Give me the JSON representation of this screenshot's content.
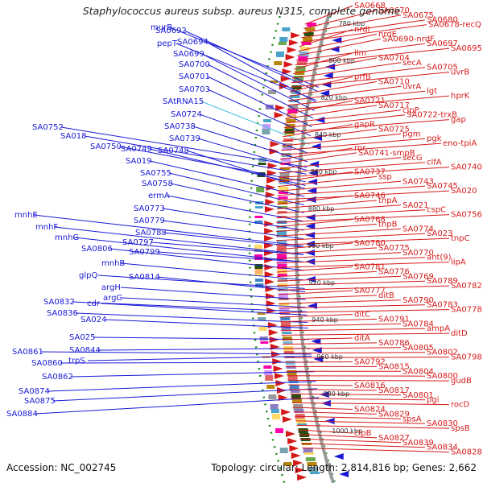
{
  "title": "Staphylococcus aureus subsp. aureus N315, complete genome",
  "accession": "Accession: NC_002745",
  "topology": "Topology: circular; Length: 2,814,816 bp; Genes: 2,662",
  "colors": {
    "forward": "#d61a1a",
    "reverse": "#1a1ad6",
    "rna": "#3cc0e0",
    "backbone": "#9a9a9a",
    "dotted": "#1a8a1a"
  },
  "ticks": [
    "780 kbp",
    "800 kbp",
    "820 kbp",
    "840 kbp",
    "860 kbp",
    "880 kbp",
    "900 kbp",
    "920 kbp",
    "940 kbp",
    "960 kbp",
    "980 kbp",
    "1000 kbp"
  ],
  "left_labels": [
    "murB",
    "SA0692",
    "pepT",
    "SA0694",
    "SA0699",
    "SA0700",
    "SA0701",
    "SA0703",
    "SAtRNA15",
    "SA0724",
    "SA0738",
    "SA0739",
    "SA0752",
    "SA018",
    "SA0750",
    "SA0749",
    "SA0748",
    "SA019",
    "SA0755",
    "SA0758",
    "ermA",
    "SA0773",
    "SA0779",
    "SA0788",
    "SA0797",
    "SA0799",
    "mnhE",
    "mnhF",
    "mnhG",
    "SA0806",
    "mnhB",
    "glpQ",
    "SA0814",
    "argH",
    "argG",
    "SA0832",
    "cdr",
    "SA0836",
    "SA024",
    "SA025",
    "SA0844",
    "trpS",
    "SA0861",
    "SA0860",
    "SA0862",
    "SA0874",
    "SA0875",
    "SA0884"
  ],
  "right_labels": [
    "SA0668",
    "SA0670",
    "SA0675",
    "SA0680",
    "SA0678-recQ",
    "nrdI",
    "nrdE",
    "SA0690-nrdF",
    "SA0697",
    "SA0695",
    "llm",
    "SA0704",
    "secA",
    "SA0705",
    "uvrB",
    "prfB",
    "SA0710",
    "uvrA",
    "lgt",
    "hprK",
    "SA0721",
    "SA0717",
    "clpP",
    "SA0722-trxB",
    "gap",
    "gapR",
    "SA0725",
    "pgm",
    "pgk",
    "eno-tpiA",
    "rnr",
    "SA0741-smpB",
    "secG",
    "clfA",
    "SA0740",
    "SA0737",
    "ssp",
    "SA0743",
    "SA0745",
    "SA020",
    "SA0746",
    "tnpA",
    "SA021",
    "cspC",
    "SA0756",
    "SA0768",
    "tnpB",
    "SA0774",
    "SA023",
    "tnpC",
    "SA0780",
    "SA0775",
    "SA0770",
    "ant(9)",
    "lipA",
    "SA0781",
    "SA0776",
    "SA0769",
    "SA0789",
    "SA0782",
    "SA0777",
    "ditB",
    "SA0790",
    "SA0783",
    "SA0778",
    "ditC",
    "SA0791",
    "SA0784",
    "ampA",
    "ditD",
    "ditA",
    "SA0786",
    "SA0805",
    "SA0802",
    "SA0798",
    "SA0792",
    "SA0815",
    "SA0804",
    "SA0800",
    "gudB",
    "SA0816",
    "SA0817",
    "SA0801",
    "pgi",
    "rocD",
    "SA0824",
    "SA0829",
    "spsA",
    "SA0830",
    "spsB",
    "clpB",
    "SA0827",
    "SA0839",
    "SA0834",
    "SA0828"
  ]
}
